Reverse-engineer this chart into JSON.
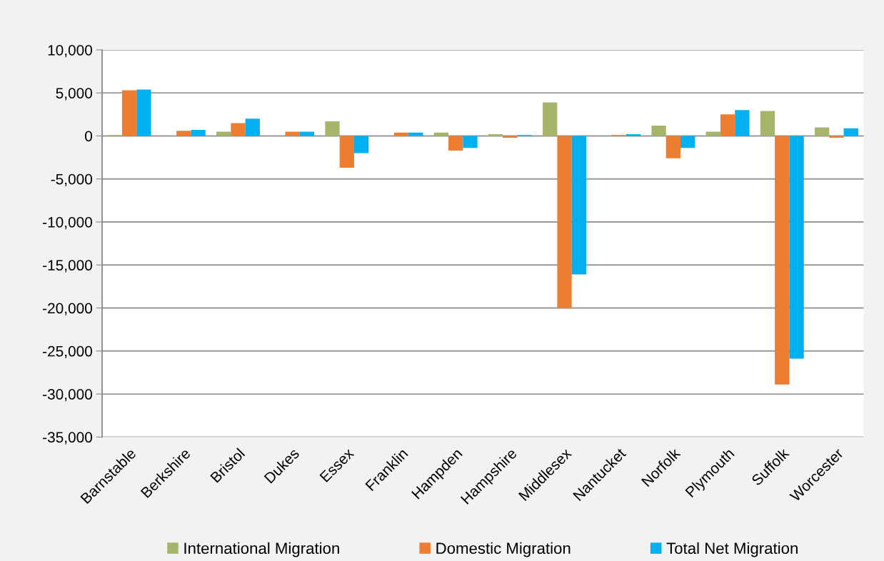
{
  "chart_data": {
    "type": "bar",
    "categories": [
      "Barnstable",
      "Berkshire",
      "Bristol",
      "Dukes",
      "Essex",
      "Franklin",
      "Hampden",
      "Hampshire",
      "Middlesex",
      "Nantucket",
      "Norfolk",
      "Plymouth",
      "Suffolk",
      "Worcester"
    ],
    "series": [
      {
        "name": "International Migration",
        "color": "#a5b56a",
        "values": [
          100,
          null,
          500,
          null,
          1700,
          null,
          400,
          200,
          3900,
          null,
          1200,
          500,
          2900,
          1000
        ]
      },
      {
        "name": "Domestic Migration",
        "color": "#ed7d31",
        "values": [
          5300,
          600,
          1500,
          500,
          -3700,
          400,
          -1700,
          -200,
          -20000,
          100,
          -2600,
          2500,
          -28900,
          -200
        ]
      },
      {
        "name": "Total Net Migration",
        "color": "#00b0f0",
        "values": [
          5400,
          700,
          2000,
          500,
          -2000,
          400,
          -1400,
          100,
          -16100,
          200,
          -1400,
          3000,
          -25900,
          900
        ]
      }
    ],
    "ylim": [
      -35000,
      10000
    ],
    "yticks": [
      {
        "value": -35000,
        "label": "-35,000"
      },
      {
        "value": -30000,
        "label": "-30,000"
      },
      {
        "value": -25000,
        "label": "-25,000"
      },
      {
        "value": -20000,
        "label": "-20,000"
      },
      {
        "value": -15000,
        "label": "-15,000"
      },
      {
        "value": -10000,
        "label": "-10,000"
      },
      {
        "value": -5000,
        "label": "-5,000"
      },
      {
        "value": 0,
        "label": "0"
      },
      {
        "value": 5000,
        "label": "5,000"
      },
      {
        "value": 10000,
        "label": "10,000"
      }
    ],
    "grid": "y",
    "legend": "bottom"
  }
}
